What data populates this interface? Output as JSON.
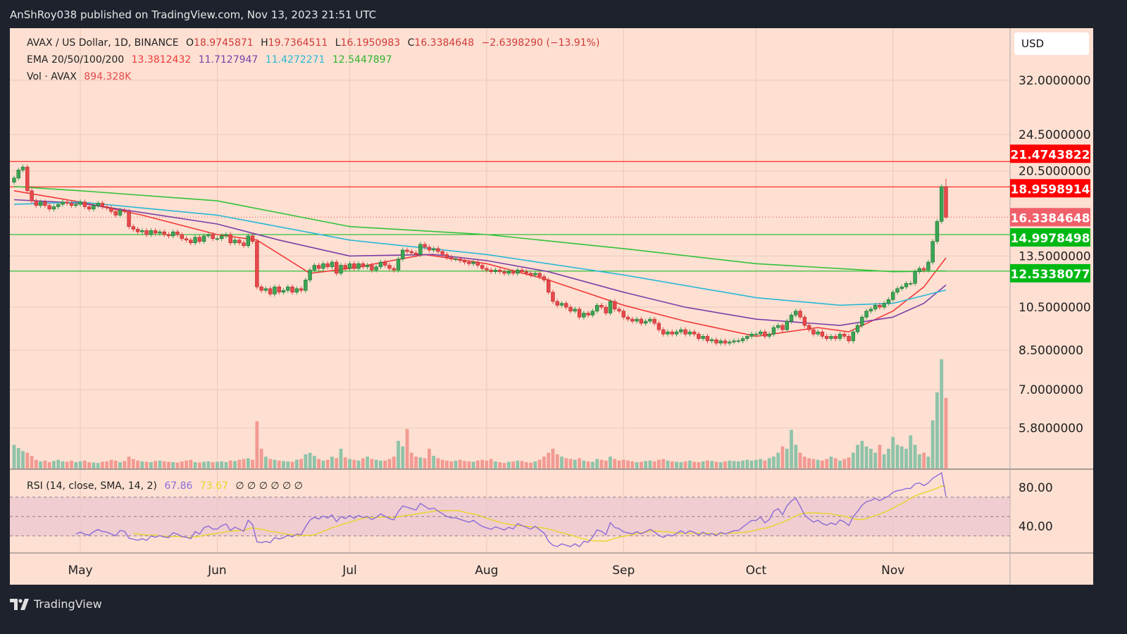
{
  "header": {
    "published": "AnShRoy038 published on TradingView.com, Nov 13, 2023 21:51 UTC"
  },
  "legend": {
    "symbol": "AVAX / US Dollar, 1D, BINANCE",
    "o_label": "O",
    "open": "18.9745871",
    "h_label": "H",
    "high": "19.7364511",
    "l_label": "L",
    "low": "16.1950983",
    "c_label": "C",
    "close": "16.3384648",
    "change": "−2.6398290 (−13.91%)",
    "ema_label": "EMA 20/50/100/200",
    "ema20": "13.3812432",
    "ema50": "11.7127947",
    "ema100": "11.4272271",
    "ema200": "12.5447897",
    "vol_label": "Vol · AVAX",
    "vol": "894.328K",
    "rsi_label": "RSI (14, close, SMA, 14, 2)",
    "rsi": "67.86",
    "rsi_sma": "73.67",
    "rsi_extra": "∅ ∅ ∅ ∅ ∅ ∅"
  },
  "currency_button": "USD",
  "footer": {
    "brand": "TradingView",
    "logo_icon": "tradingview-logo-icon"
  },
  "colors": {
    "background": "#fde0d2",
    "up": "#3aa655",
    "down": "#e8484b",
    "ema20": "#f23a3a",
    "ema50": "#7b3fa8",
    "ema100": "#2ab7d6",
    "ema200": "#33c23a",
    "rsi": "#8c6bd9",
    "rsi_sma": "#e6d52a",
    "resistance": "#ff0000",
    "support": "#00b814"
  },
  "chart_data": {
    "type": "candlestick",
    "y_scale": "log",
    "grid": true,
    "y_ticks": [
      "32.0000000",
      "24.5000000",
      "20.5000000",
      "13.5000000",
      "10.5000000",
      "8.5000000",
      "7.0000000",
      "5.8000000"
    ],
    "x_ticks": [
      {
        "label": "May",
        "date": "2023-05-01"
      },
      {
        "label": "Jun",
        "date": "2023-06-01"
      },
      {
        "label": "Jul",
        "date": "2023-07-01"
      },
      {
        "label": "Aug",
        "date": "2023-08-01"
      },
      {
        "label": "Sep",
        "date": "2023-09-01"
      },
      {
        "label": "Oct",
        "date": "2023-10-01"
      },
      {
        "label": "Nov",
        "date": "2023-11-01"
      }
    ],
    "last_candle": {
      "open": 18.9745871,
      "high": 19.7364511,
      "low": 16.1950983,
      "close": 16.3384648
    },
    "closes_by_month": [
      {
        "month": "2023-04",
        "first_day": 16,
        "values": [
          19.8,
          20.6,
          20.9,
          18.6,
          17.7,
          17.3,
          17.6,
          17.3,
          17.0,
          17.2,
          17.4,
          17.6,
          17.5,
          17.3,
          17.4
        ]
      },
      {
        "month": "2023-05",
        "first_day": 1,
        "values": [
          17.6,
          17.2,
          17.0,
          17.3,
          17.5,
          17.2,
          17.1,
          16.8,
          16.5,
          16.9,
          16.8,
          15.6,
          15.4,
          15.2,
          15.3,
          15.0,
          15.3,
          15.1,
          15.2,
          15.0,
          14.9,
          15.2,
          15.0,
          14.7,
          14.6,
          14.4,
          14.8,
          14.5,
          14.9,
          15.0,
          14.7
        ]
      },
      {
        "month": "2023-06",
        "first_day": 1,
        "values": [
          14.7,
          14.9,
          15.0,
          14.4,
          14.6,
          14.4,
          14.2,
          14.9,
          14.5,
          11.6,
          11.4,
          11.5,
          11.2,
          11.6,
          11.3,
          11.4,
          11.6,
          11.3,
          11.5,
          11.4,
          12.0,
          12.6,
          12.9,
          12.7,
          13.0,
          12.8,
          13.1,
          12.4,
          12.9,
          12.7
        ]
      },
      {
        "month": "2023-07",
        "first_day": 1,
        "values": [
          13.0,
          12.7,
          13.0,
          12.8,
          12.9,
          12.6,
          12.8,
          13.1,
          12.9,
          12.7,
          12.6,
          13.3,
          13.9,
          13.8,
          13.7,
          13.6,
          14.3,
          14.1,
          13.9,
          14.0,
          13.8,
          13.6,
          13.4,
          13.3,
          13.3,
          13.2,
          13.1,
          13.0,
          13.1,
          12.9,
          12.7
        ]
      },
      {
        "month": "2023-08",
        "first_day": 1,
        "values": [
          12.6,
          12.5,
          12.6,
          12.5,
          12.4,
          12.5,
          12.4,
          12.6,
          12.5,
          12.4,
          12.3,
          12.4,
          12.2,
          12.0,
          11.3,
          10.8,
          10.6,
          10.7,
          10.5,
          10.3,
          10.4,
          10.0,
          10.2,
          10.1,
          10.3,
          10.6,
          10.5,
          10.2,
          10.8,
          10.4,
          10.3
        ]
      },
      {
        "month": "2023-09",
        "first_day": 1,
        "values": [
          10.0,
          9.9,
          9.8,
          9.9,
          9.7,
          9.8,
          9.9,
          9.7,
          9.4,
          9.2,
          9.3,
          9.2,
          9.3,
          9.4,
          9.2,
          9.3,
          9.2,
          9.0,
          9.1,
          8.9,
          8.95,
          8.8,
          8.9,
          8.8,
          8.85,
          8.9,
          8.9,
          9.0,
          9.1,
          9.2
        ]
      },
      {
        "month": "2023-10",
        "first_day": 1,
        "values": [
          9.2,
          9.3,
          9.1,
          9.2,
          9.5,
          9.6,
          9.4,
          9.8,
          10.1,
          10.3,
          10.0,
          9.6,
          9.4,
          9.2,
          9.3,
          9.1,
          9.0,
          9.1,
          9.0,
          9.2,
          9.1,
          8.9,
          9.3,
          9.6,
          10.0,
          10.3,
          10.4,
          10.6,
          10.5,
          10.7,
          10.9
        ]
      },
      {
        "month": "2023-11",
        "first_day": 1,
        "values": [
          11.3,
          11.5,
          11.6,
          11.8,
          11.8,
          12.5,
          12.7,
          12.6,
          13.1,
          14.5,
          16.0,
          18.97,
          16.3384648
        ]
      }
    ],
    "volume_k_by_month": [
      [
        300,
        260,
        220,
        200,
        160,
        110,
        90,
        100,
        80,
        95,
        110,
        90,
        85,
        100,
        80
      ],
      [
        90,
        100,
        80,
        75,
        70,
        85,
        90,
        110,
        100,
        80,
        95,
        150,
        120,
        100,
        90,
        85,
        80,
        95,
        100,
        90,
        85,
        80,
        75,
        90,
        100,
        110,
        80,
        75,
        85,
        90,
        80
      ],
      [
        85,
        90,
        80,
        100,
        95,
        110,
        120,
        130,
        110,
        600,
        250,
        150,
        120,
        110,
        100,
        95,
        90,
        85,
        110,
        120,
        180,
        200,
        160,
        120,
        100,
        110,
        150,
        130,
        250,
        140
      ],
      [
        120,
        110,
        100,
        130,
        150,
        120,
        110,
        100,
        100,
        120,
        150,
        350,
        280,
        500,
        200,
        150,
        140,
        130,
        250,
        160,
        130,
        110,
        100,
        90,
        100,
        110,
        95,
        90,
        85,
        100,
        110
      ],
      [
        100,
        120,
        90,
        80,
        70,
        85,
        90,
        100,
        95,
        80,
        75,
        90,
        110,
        150,
        200,
        250,
        180,
        150,
        130,
        120,
        110,
        130,
        100,
        90,
        85,
        120,
        110,
        100,
        150,
        120,
        100
      ],
      [
        110,
        100,
        90,
        80,
        85,
        95,
        100,
        90,
        110,
        120,
        100,
        90,
        85,
        80,
        90,
        100,
        85,
        80,
        90,
        100,
        95,
        85,
        80,
        90,
        100,
        95,
        90,
        100,
        110,
        100
      ],
      [
        110,
        120,
        100,
        130,
        150,
        200,
        280,
        250,
        490,
        300,
        200,
        150,
        130,
        120,
        110,
        100,
        120,
        150,
        130,
        100,
        120,
        140,
        200,
        300,
        350,
        280,
        250,
        200,
        300,
        180,
        250
      ],
      [
        400,
        300,
        280,
        250,
        420,
        300,
        180,
        200,
        150,
        610,
        965,
        1386,
        894.328
      ]
    ],
    "ema": [
      {
        "name": "EMA 20",
        "color_key": "ema20",
        "points": [
          [
            "2023-04-16",
            18.6
          ],
          [
            "2023-05-01",
            17.6
          ],
          [
            "2023-05-15",
            16.5
          ],
          [
            "2023-06-01",
            15.0
          ],
          [
            "2023-06-10",
            14.6
          ],
          [
            "2023-06-22",
            12.4
          ],
          [
            "2023-07-01",
            12.7
          ],
          [
            "2023-07-18",
            13.6
          ],
          [
            "2023-08-01",
            13.0
          ],
          [
            "2023-08-15",
            12.0
          ],
          [
            "2023-09-01",
            10.6
          ],
          [
            "2023-09-15",
            9.8
          ],
          [
            "2023-10-01",
            9.1
          ],
          [
            "2023-10-15",
            9.5
          ],
          [
            "2023-10-22",
            9.3
          ],
          [
            "2023-11-01",
            10.3
          ],
          [
            "2023-11-08",
            11.6
          ],
          [
            "2023-11-13",
            13.3812432
          ]
        ]
      },
      {
        "name": "EMA 50",
        "color_key": "ema50",
        "points": [
          [
            "2023-04-16",
            17.8
          ],
          [
            "2023-05-01",
            17.5
          ],
          [
            "2023-06-01",
            15.8
          ],
          [
            "2023-06-15",
            14.6
          ],
          [
            "2023-07-01",
            13.5
          ],
          [
            "2023-07-20",
            13.6
          ],
          [
            "2023-08-01",
            13.2
          ],
          [
            "2023-08-15",
            12.5
          ],
          [
            "2023-09-01",
            11.3
          ],
          [
            "2023-09-15",
            10.5
          ],
          [
            "2023-10-01",
            9.9
          ],
          [
            "2023-10-20",
            9.6
          ],
          [
            "2023-11-01",
            10.0
          ],
          [
            "2023-11-08",
            10.7
          ],
          [
            "2023-11-13",
            11.7127947
          ]
        ]
      },
      {
        "name": "EMA 100",
        "color_key": "ema100",
        "points": [
          [
            "2023-04-16",
            17.4
          ],
          [
            "2023-05-01",
            17.6
          ],
          [
            "2023-06-01",
            16.5
          ],
          [
            "2023-07-01",
            14.6
          ],
          [
            "2023-08-01",
            13.6
          ],
          [
            "2023-09-01",
            12.3
          ],
          [
            "2023-10-01",
            11.0
          ],
          [
            "2023-10-20",
            10.6
          ],
          [
            "2023-11-01",
            10.7
          ],
          [
            "2023-11-13",
            11.4272271
          ]
        ]
      },
      {
        "name": "EMA 200",
        "color_key": "ema200",
        "points": [
          [
            "2023-04-16",
            19.0
          ],
          [
            "2023-05-01",
            18.6
          ],
          [
            "2023-06-01",
            17.7
          ],
          [
            "2023-07-01",
            15.6
          ],
          [
            "2023-08-01",
            15.0
          ],
          [
            "2023-09-01",
            14.0
          ],
          [
            "2023-10-01",
            13.0
          ],
          [
            "2023-11-01",
            12.5
          ],
          [
            "2023-11-13",
            12.5447897
          ]
        ]
      }
    ],
    "levels": [
      {
        "value": 21.4743822,
        "label": "21.4743822",
        "color_key": "resistance"
      },
      {
        "value": 18.9598914,
        "label": "18.9598914",
        "color_key": "resistance"
      },
      {
        "value": 14.9978498,
        "label": "14.9978498",
        "color_key": "support"
      },
      {
        "value": 12.5338077,
        "label": "12.5338077",
        "color_key": "support"
      }
    ],
    "last_price_label": "16.3384648",
    "rsi": {
      "period": 14,
      "sma": 14,
      "upper": 70,
      "lower": 30,
      "mid": 50,
      "ticks": [
        "80.00",
        "40.00"
      ]
    }
  }
}
